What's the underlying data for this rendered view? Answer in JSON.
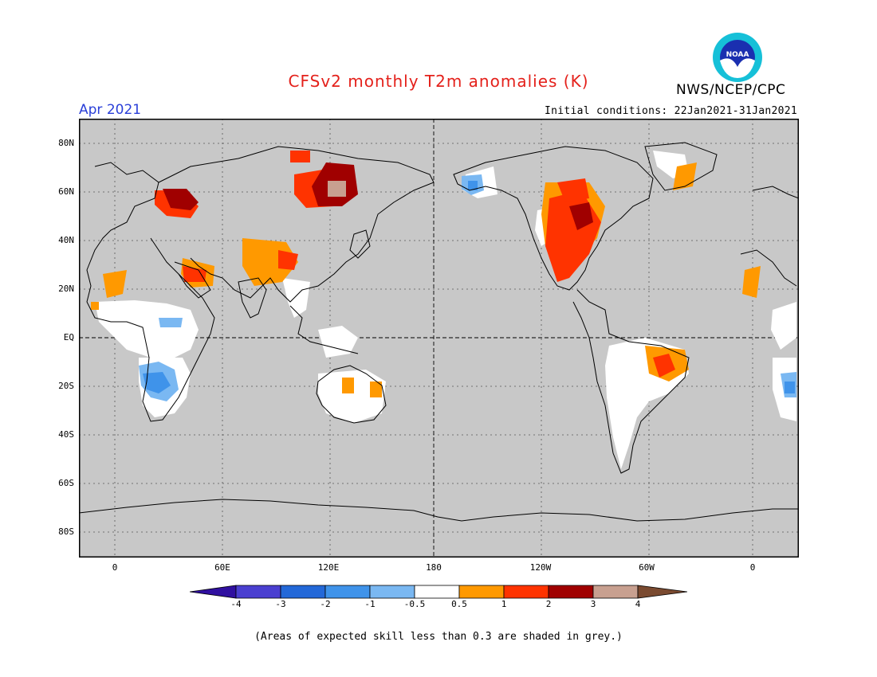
{
  "header": {
    "title": "CFSv2 monthly T2m anomalies (K)",
    "period": "Apr 2021",
    "initial_conditions": "Initial conditions: 22Jan2021-31Jan2021",
    "org": "NWS/NCEP/CPC",
    "logo_text": "NOAA"
  },
  "map": {
    "lat_labels": [
      "80N",
      "60N",
      "40N",
      "20N",
      "EQ",
      "20S",
      "40S",
      "60S",
      "80S"
    ],
    "lon_labels": [
      "0",
      "60E",
      "120E",
      "180",
      "120W",
      "60W",
      "0"
    ],
    "background_color": "#c8c8c8"
  },
  "colorbar": {
    "labels": [
      "-4",
      "-3",
      "-2",
      "-1",
      "-0.5",
      "0.5",
      "1",
      "2",
      "3",
      "4"
    ],
    "colors": [
      "#3010a0",
      "#4a3fd0",
      "#2368d8",
      "#3f93ea",
      "#7ab8f2",
      "#ffffff",
      "#ff9900",
      "#ff3300",
      "#a00000",
      "#c8a090",
      "#7a4a30"
    ]
  },
  "footer": {
    "note": "(Areas of expected skill less than 0.3 are shaded in grey.)"
  }
}
